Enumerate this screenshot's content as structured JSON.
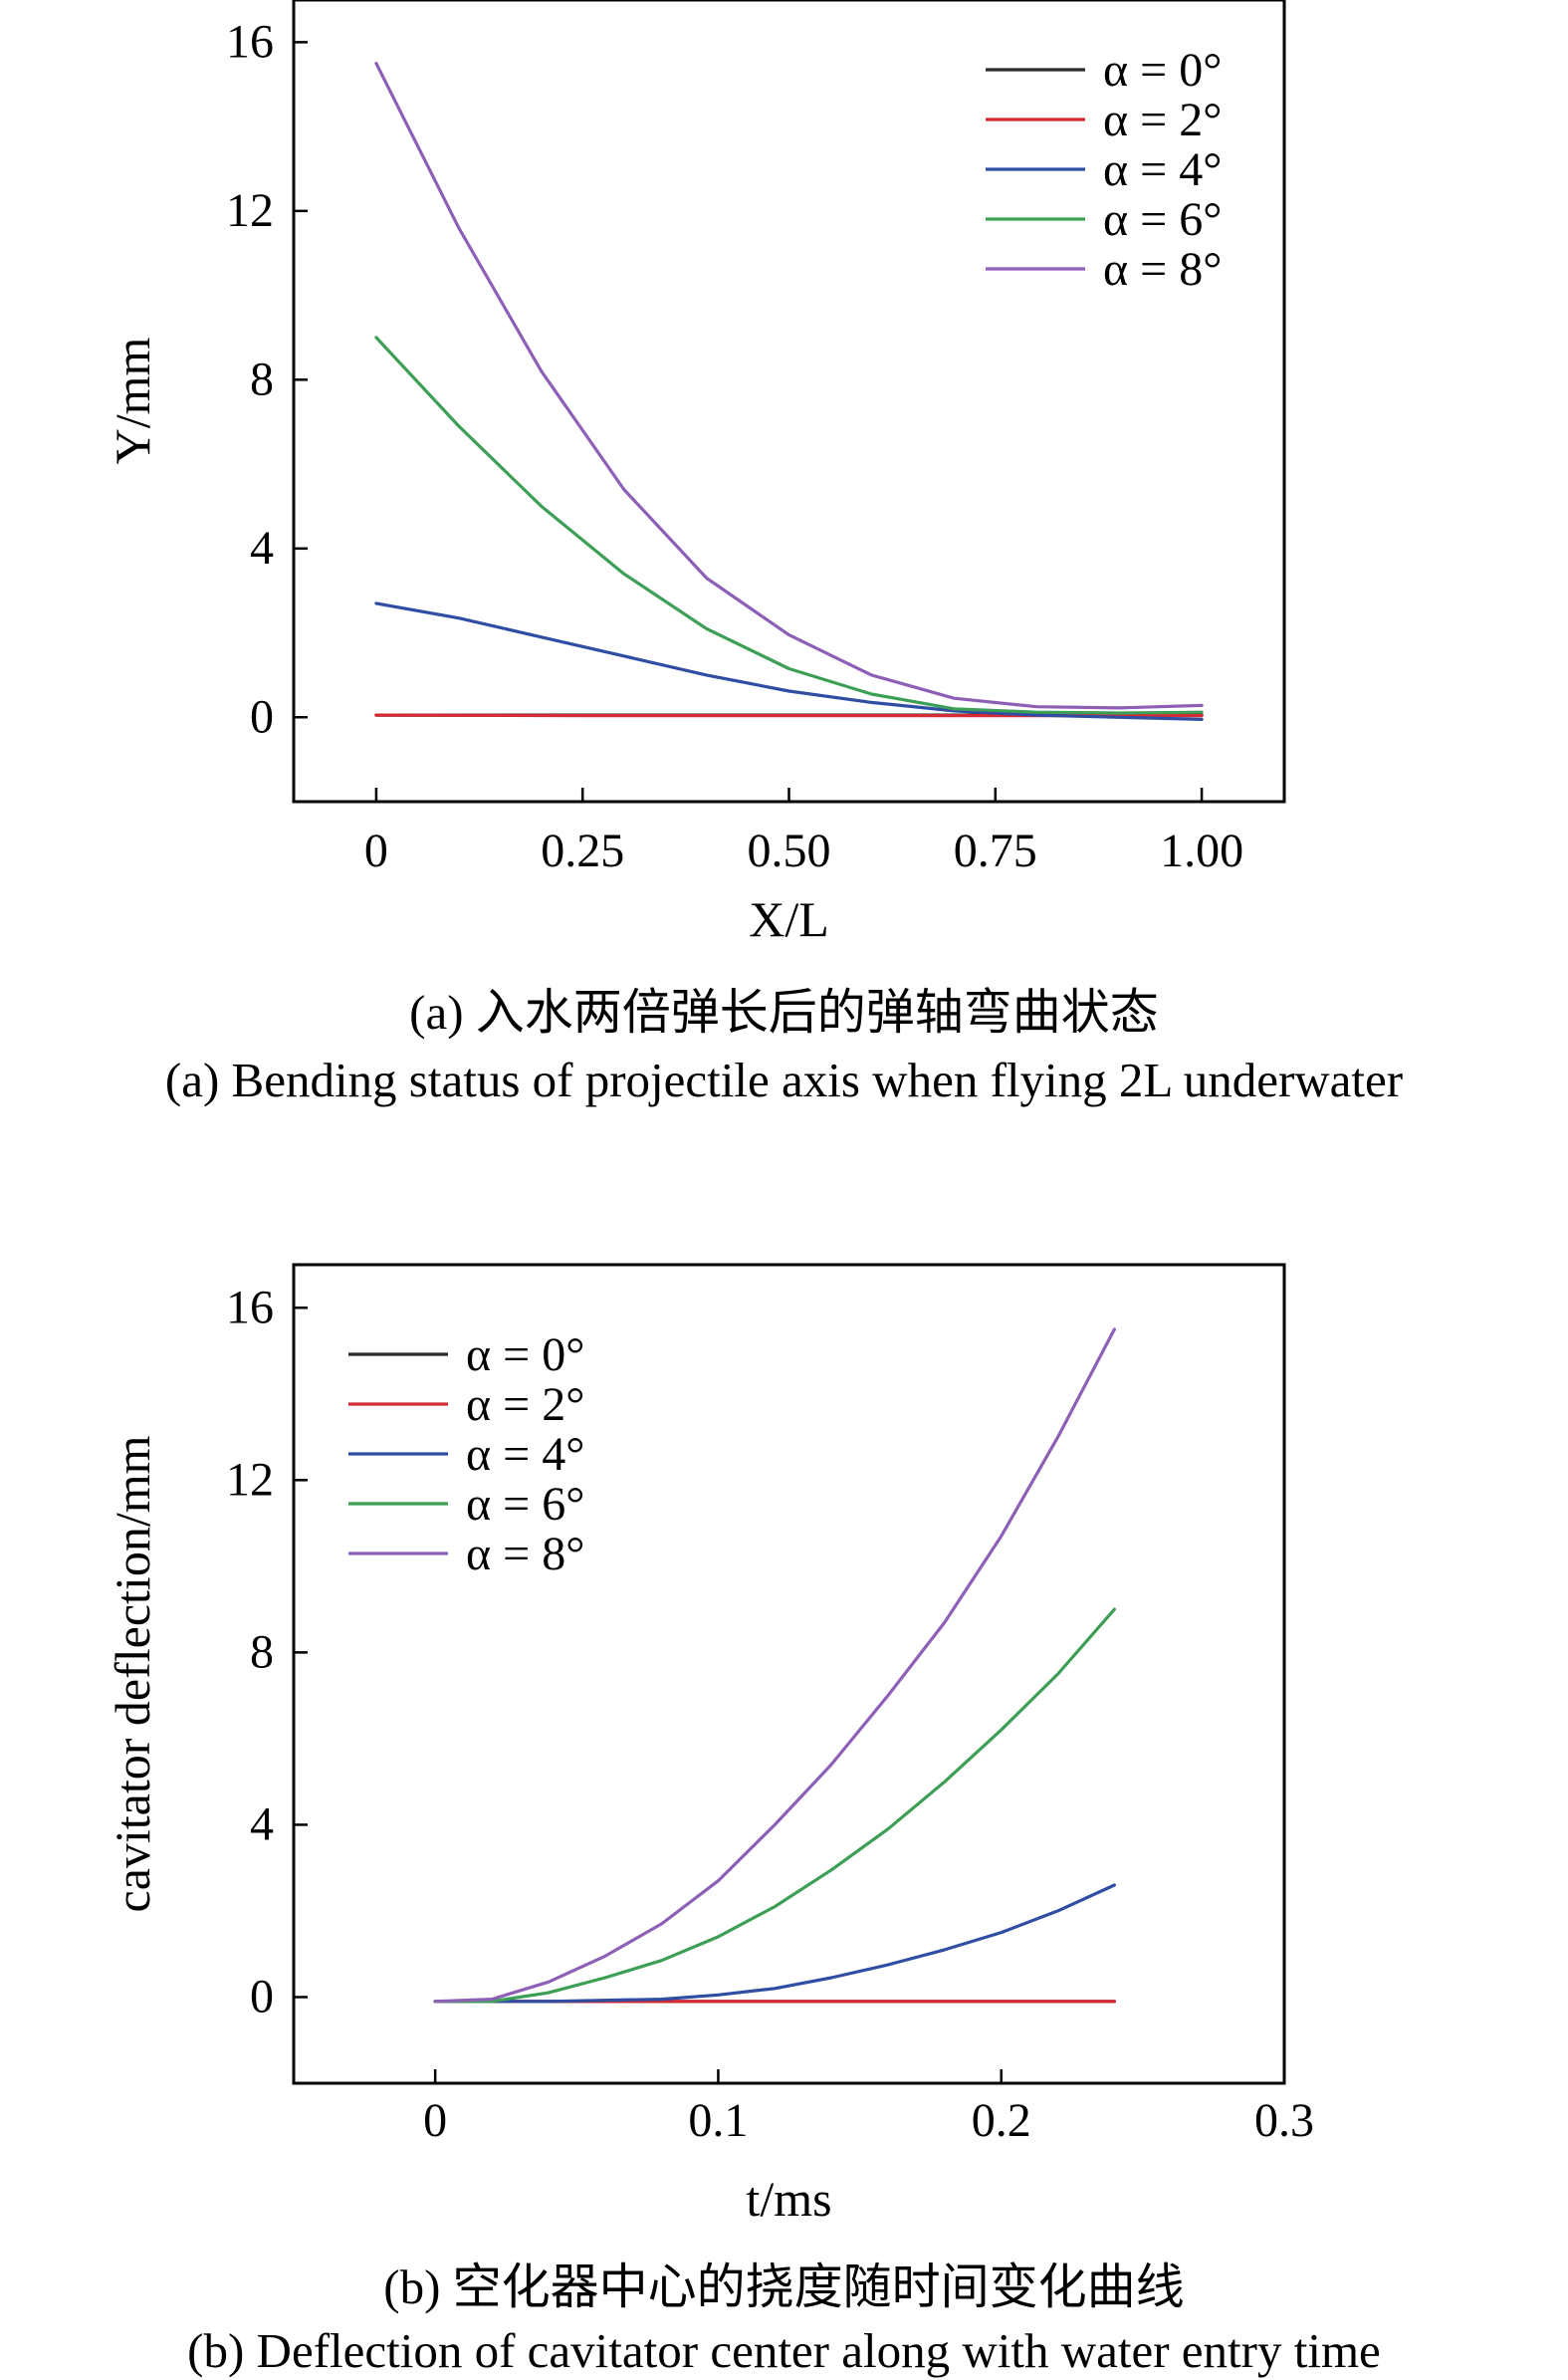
{
  "chart_data": [
    {
      "type": "line",
      "id": "a",
      "xlabel": "X/L",
      "ylabel": "Y/mm",
      "xlim": [
        -0.1,
        1.1
      ],
      "ylim": [
        -2,
        17
      ],
      "xticks": [
        0,
        0.25,
        0.5,
        0.75,
        1.0
      ],
      "xtick_labels": [
        "0",
        "0.25",
        "0.50",
        "0.75",
        "1.00"
      ],
      "yticks": [
        0,
        4,
        8,
        12,
        16
      ],
      "ytick_labels": [
        "0",
        "4",
        "8",
        "12",
        "16"
      ],
      "legend_position": "top-right",
      "grid": false,
      "series": [
        {
          "name": "α = 0°",
          "color": "#2b2b2b",
          "x": [
            0,
            0.25,
            0.5,
            0.75,
            1.0
          ],
          "y": [
            0.05,
            0.05,
            0.05,
            0.05,
            0.05
          ]
        },
        {
          "name": "α = 2°",
          "color": "#d42a34",
          "x": [
            0,
            0.25,
            0.5,
            0.75,
            1.0
          ],
          "y": [
            0.05,
            0.04,
            0.04,
            0.04,
            0.04
          ]
        },
        {
          "name": "α = 4°",
          "color": "#2f4ea3",
          "x": [
            0,
            0.1,
            0.2,
            0.3,
            0.4,
            0.5,
            0.6,
            0.7,
            0.8,
            0.9,
            1.0
          ],
          "y": [
            2.7,
            2.35,
            1.9,
            1.45,
            1.0,
            0.62,
            0.35,
            0.15,
            0.05,
            0.0,
            -0.05
          ]
        },
        {
          "name": "α = 6°",
          "color": "#3d9e55",
          "x": [
            0,
            0.1,
            0.2,
            0.3,
            0.4,
            0.5,
            0.6,
            0.7,
            0.8,
            0.9,
            1.0
          ],
          "y": [
            9.0,
            6.9,
            5.0,
            3.4,
            2.1,
            1.15,
            0.55,
            0.2,
            0.12,
            0.1,
            0.12
          ]
        },
        {
          "name": "α = 8°",
          "color": "#8d5fb6",
          "x": [
            0,
            0.1,
            0.2,
            0.3,
            0.4,
            0.5,
            0.6,
            0.7,
            0.8,
            0.9,
            1.0
          ],
          "y": [
            15.5,
            11.6,
            8.2,
            5.4,
            3.3,
            1.95,
            1.0,
            0.45,
            0.25,
            0.22,
            0.28
          ]
        }
      ]
    },
    {
      "type": "line",
      "id": "b",
      "xlabel": "t/ms",
      "ylabel": "cavitator deflection/mm",
      "xlim": [
        -0.05,
        0.3
      ],
      "ylim": [
        -2,
        17
      ],
      "xticks": [
        0,
        0.1,
        0.2,
        0.3
      ],
      "xtick_labels": [
        "0",
        "0.1",
        "0.2",
        "0.3"
      ],
      "yticks": [
        0,
        4,
        8,
        12,
        16
      ],
      "ytick_labels": [
        "0",
        "4",
        "8",
        "12",
        "16"
      ],
      "legend_position": "top-left",
      "grid": false,
      "series": [
        {
          "name": "α = 0°",
          "color": "#2b2b2b",
          "x": [
            0,
            0.24
          ],
          "y": [
            -0.1,
            -0.1
          ]
        },
        {
          "name": "α = 2°",
          "color": "#d42a34",
          "x": [
            0,
            0.24
          ],
          "y": [
            -0.1,
            -0.1
          ]
        },
        {
          "name": "α = 4°",
          "color": "#2f4ea3",
          "x": [
            0,
            0.04,
            0.08,
            0.1,
            0.12,
            0.14,
            0.16,
            0.18,
            0.2,
            0.22,
            0.24
          ],
          "y": [
            -0.1,
            -0.1,
            -0.05,
            0.05,
            0.2,
            0.45,
            0.75,
            1.1,
            1.5,
            2.0,
            2.6
          ]
        },
        {
          "name": "α = 6°",
          "color": "#3d9e55",
          "x": [
            0,
            0.02,
            0.04,
            0.06,
            0.08,
            0.1,
            0.12,
            0.14,
            0.16,
            0.18,
            0.2,
            0.22,
            0.24
          ],
          "y": [
            -0.1,
            -0.1,
            0.1,
            0.45,
            0.85,
            1.4,
            2.1,
            2.95,
            3.9,
            5.0,
            6.2,
            7.5,
            9.0
          ]
        },
        {
          "name": "α = 8°",
          "color": "#8d5fb6",
          "x": [
            0,
            0.02,
            0.04,
            0.06,
            0.08,
            0.1,
            0.12,
            0.14,
            0.16,
            0.18,
            0.2,
            0.22,
            0.24
          ],
          "y": [
            -0.1,
            -0.05,
            0.35,
            0.95,
            1.7,
            2.7,
            4.0,
            5.4,
            7.0,
            8.7,
            10.7,
            13.0,
            15.5
          ]
        }
      ]
    }
  ],
  "captions": {
    "a_zh": "(a) 入水两倍弹长后的弹轴弯曲状态",
    "a_en": "(a) Bending status of projectile axis when flying 2L underwater",
    "b_zh": "(b) 空化器中心的挠度随时间变化曲线",
    "b_en": "(b) Deflection of cavitator center along with water entry time"
  }
}
